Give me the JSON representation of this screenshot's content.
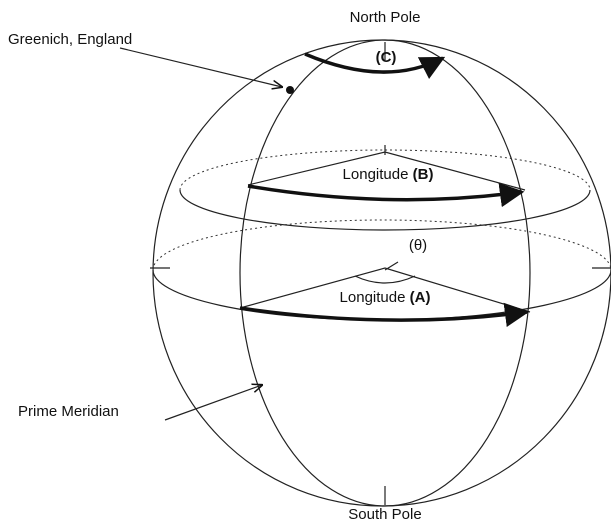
{
  "labels": {
    "north_pole": "North Pole",
    "south_pole": "South Pole",
    "greenwich": "Greenich, England",
    "prime_meridian": "Prime Meridian",
    "angle_c": "(C)",
    "theta": "(θ)",
    "longitude_b": {
      "text": "Longitude",
      "marker": "(B)"
    },
    "longitude_a": {
      "text": "Longitude",
      "marker": "(A)"
    }
  }
}
